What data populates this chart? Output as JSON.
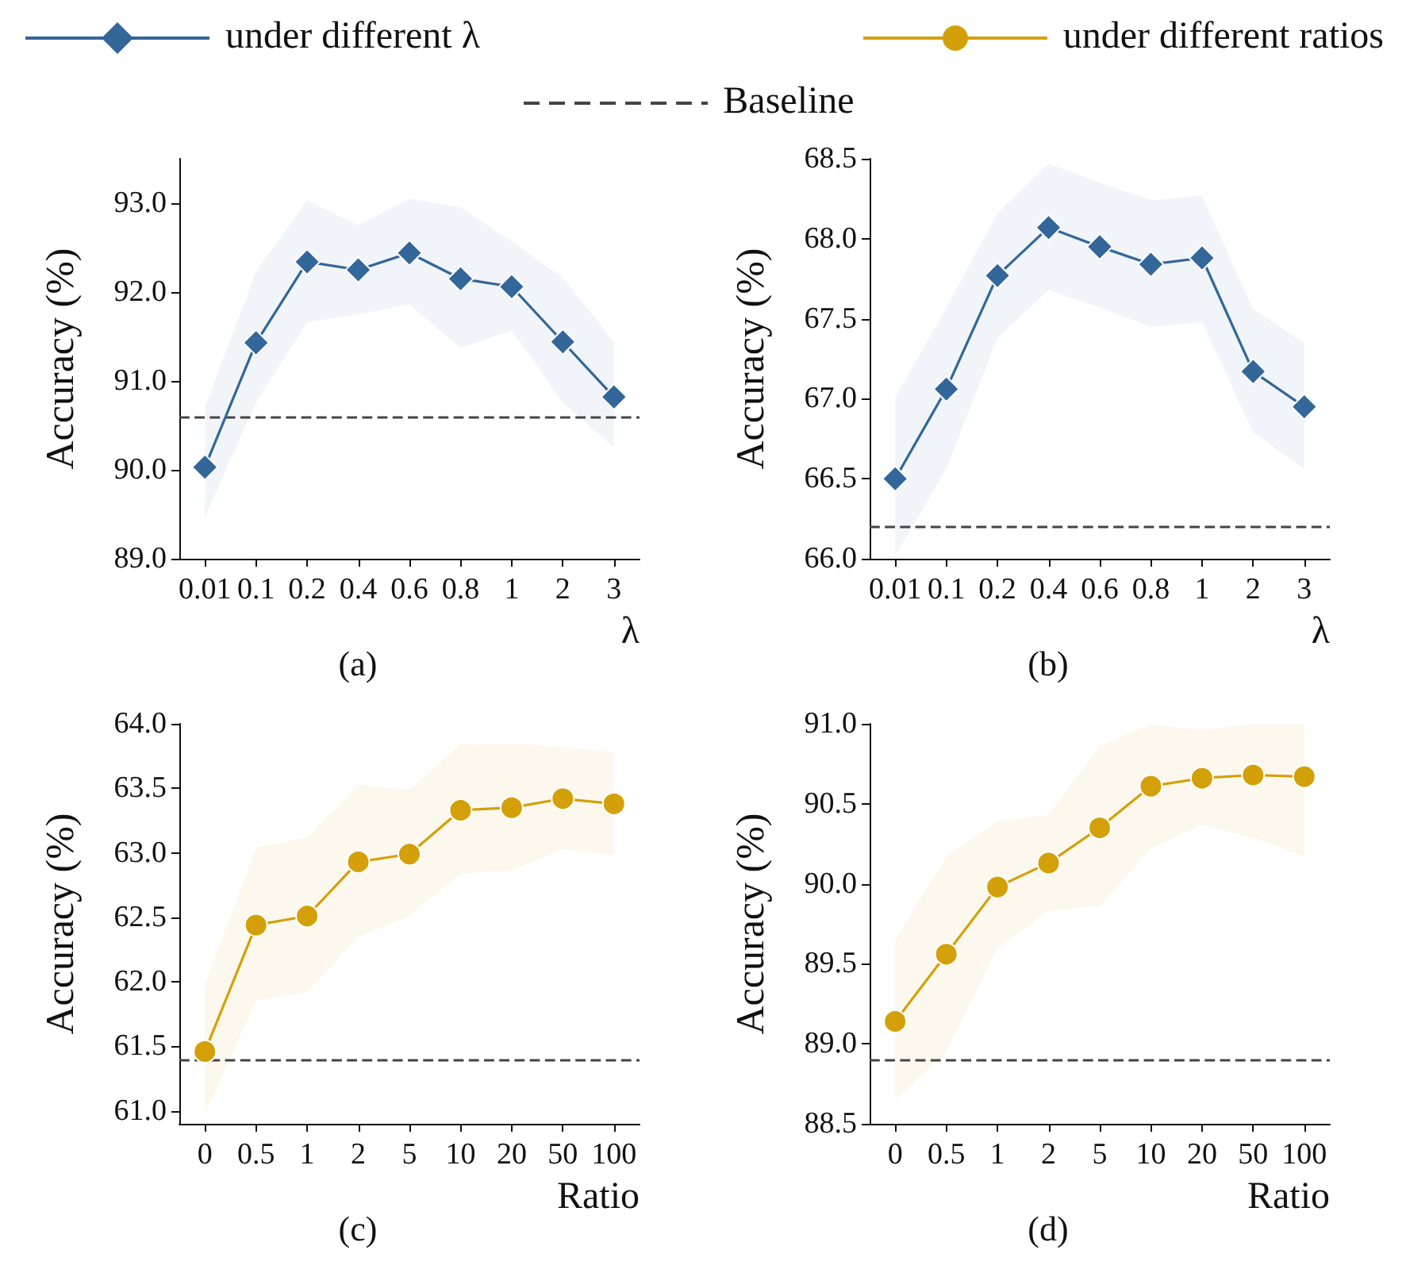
{
  "chart_data": [
    {
      "type": "line",
      "title": "(a)",
      "xlabel": "λ",
      "ylabel": "Accuracy (%)",
      "categories": [
        "0.01",
        "0.1",
        "0.2",
        "0.4",
        "0.6",
        "0.8",
        "1",
        "2",
        "3"
      ],
      "ylim": [
        89.0,
        93.5
      ],
      "yticks": [
        {
          "value": 89,
          "label": "89.0"
        },
        {
          "value": 90,
          "label": "90.0"
        },
        {
          "value": 91,
          "label": "91.0"
        },
        {
          "value": 92,
          "label": "92.0"
        },
        {
          "value": 93,
          "label": "93.0"
        }
      ],
      "marker": "diamond",
      "line_style": "solid",
      "grid": false,
      "legend": "top",
      "series": [
        {
          "name": "under different λ",
          "color": "#336699",
          "values": [
            90.03,
            91.43,
            92.34,
            92.25,
            92.44,
            92.15,
            92.06,
            91.44,
            90.82
          ],
          "lower": [
            89.47,
            90.76,
            91.66,
            91.75,
            91.86,
            91.37,
            91.57,
            90.76,
            90.25
          ],
          "upper": [
            90.71,
            92.23,
            93.03,
            92.75,
            93.05,
            92.95,
            92.57,
            92.16,
            91.44
          ]
        }
      ],
      "ref_lines": [
        {
          "axis": "y",
          "value": 90.6,
          "label": "Baseline",
          "color": "#444444",
          "line_style": "dashed"
        }
      ]
    },
    {
      "type": "line",
      "title": "(b)",
      "xlabel": "λ",
      "ylabel": "Accuracy (%)",
      "categories": [
        "0.01",
        "0.1",
        "0.2",
        "0.4",
        "0.6",
        "0.8",
        "1",
        "2",
        "3"
      ],
      "ylim": [
        66.0,
        68.5
      ],
      "yticks": [
        {
          "value": 66,
          "label": "66.0"
        },
        {
          "value": 66.5,
          "label": "66.5"
        },
        {
          "value": 67,
          "label": "67.0"
        },
        {
          "value": 67.5,
          "label": "67.5"
        },
        {
          "value": 68,
          "label": "68.0"
        },
        {
          "value": 68.5,
          "label": "68.5"
        }
      ],
      "marker": "diamond",
      "line_style": "solid",
      "grid": false,
      "legend": "top",
      "series": [
        {
          "name": "under different λ",
          "color": "#336699",
          "values": [
            66.5,
            67.06,
            67.77,
            68.07,
            67.95,
            67.84,
            67.88,
            67.17,
            66.95
          ],
          "lower": [
            66.02,
            66.56,
            67.38,
            67.68,
            67.57,
            67.45,
            67.48,
            66.79,
            66.56
          ],
          "upper": [
            67.01,
            67.57,
            68.16,
            68.47,
            68.35,
            68.24,
            68.27,
            67.56,
            67.35
          ]
        }
      ],
      "ref_lines": [
        {
          "axis": "y",
          "value": 66.2,
          "color": "#444444",
          "line_style": "dashed"
        }
      ]
    },
    {
      "type": "line",
      "title": "(c)",
      "xlabel": "Ratio",
      "ylabel": "Accuracy (%)",
      "categories": [
        "0",
        "0.5",
        "1",
        "2",
        "5",
        "10",
        "20",
        "50",
        "100"
      ],
      "ylim": [
        60.9,
        64.0
      ],
      "yticks": [
        {
          "value": 61,
          "label": "61.0"
        },
        {
          "value": 61.5,
          "label": "61.5"
        },
        {
          "value": 62,
          "label": "62.0"
        },
        {
          "value": 62.5,
          "label": "62.5"
        },
        {
          "value": 63,
          "label": "63.0"
        },
        {
          "value": 63.5,
          "label": "63.5"
        },
        {
          "value": 64,
          "label": "64.0"
        }
      ],
      "marker": "circle",
      "line_style": "solid",
      "grid": false,
      "legend": "top",
      "series": [
        {
          "name": "under different ratios",
          "color": "#d4a00a",
          "values": [
            61.46,
            62.44,
            62.51,
            62.93,
            62.99,
            63.33,
            63.35,
            63.42,
            63.38
          ],
          "lower": [
            60.97,
            61.85,
            61.92,
            62.35,
            62.51,
            62.84,
            62.86,
            63.03,
            62.98
          ],
          "upper": [
            61.98,
            63.04,
            63.12,
            63.53,
            63.49,
            63.84,
            63.85,
            63.82,
            63.78
          ]
        }
      ],
      "ref_lines": [
        {
          "axis": "y",
          "value": 61.4,
          "color": "#444444",
          "line_style": "dashed"
        }
      ]
    },
    {
      "type": "line",
      "title": "(d)",
      "xlabel": "Ratio",
      "ylabel": "Accuracy (%)",
      "categories": [
        "0",
        "0.5",
        "1",
        "2",
        "5",
        "10",
        "20",
        "50",
        "100"
      ],
      "ylim": [
        88.5,
        91.0
      ],
      "yticks": [
        {
          "value": 88.5,
          "label": "88.5"
        },
        {
          "value": 89,
          "label": "89.0"
        },
        {
          "value": 89.5,
          "label": "89.5"
        },
        {
          "value": 90,
          "label": "90.0"
        },
        {
          "value": 90.5,
          "label": "90.5"
        },
        {
          "value": 91,
          "label": "91.0"
        }
      ],
      "marker": "circle",
      "line_style": "solid",
      "grid": false,
      "legend": "top",
      "series": [
        {
          "name": "under different ratios",
          "color": "#d4a00a",
          "values": [
            89.14,
            89.56,
            89.98,
            90.13,
            90.35,
            90.61,
            90.66,
            90.68,
            90.67
          ],
          "lower": [
            88.65,
            88.95,
            89.6,
            89.83,
            89.86,
            90.22,
            90.37,
            90.29,
            90.17
          ],
          "upper": [
            89.65,
            90.17,
            90.39,
            90.43,
            90.86,
            91.0,
            90.96,
            91.0,
            91.0
          ]
        }
      ],
      "ref_lines": [
        {
          "axis": "y",
          "value": 88.9,
          "color": "#444444",
          "line_style": "dashed"
        }
      ]
    }
  ]
}
